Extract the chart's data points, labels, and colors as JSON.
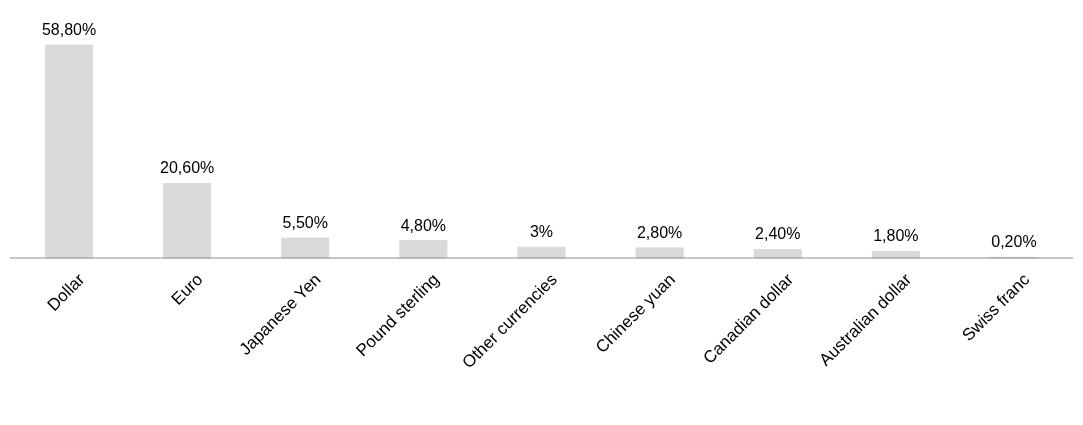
{
  "chart_data": {
    "type": "bar",
    "categories": [
      "Dollar",
      "Euro",
      "Japanese Yen",
      "Pound sterling",
      "Other currencies",
      "Chinese yuan",
      "Canadian dollar",
      "Australian dollar",
      "Swiss franc"
    ],
    "values": [
      58.8,
      20.6,
      5.5,
      4.8,
      3,
      2.8,
      2.4,
      1.8,
      0.2
    ],
    "value_labels": [
      "58,80%",
      "20,60%",
      "5,50%",
      "4,80%",
      "3%",
      "2,80%",
      "2,40%",
      "1,80%",
      "0,20%"
    ],
    "color": "#d9d9d9"
  }
}
